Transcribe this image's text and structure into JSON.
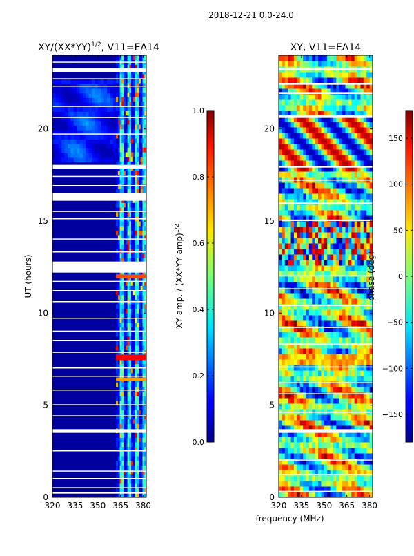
{
  "figure": {
    "suptitle": "2018-12-21 0.0-24.0",
    "shared_xlabel": "frequency (MHz)"
  },
  "chart_data": [
    {
      "type": "heatmap",
      "title": "XY/(XX*YY)^1/2, V11=EA14",
      "title_main": "XY/(XX*YY)",
      "title_exp": "1/2",
      "title_tail": ", V11=EA14",
      "xlabel": "frequency (MHz)",
      "ylabel": "UT (hours)",
      "xlim": [
        320,
        382
      ],
      "ylim": [
        0,
        24
      ],
      "xticks": [
        320,
        335,
        350,
        365,
        380
      ],
      "yticks": [
        0,
        5,
        10,
        15,
        20
      ],
      "flagged_hours": [
        [
          12.2,
          12.8
        ],
        [
          16.1,
          16.5
        ],
        [
          0.2,
          0.3
        ],
        [
          3.55,
          3.65
        ],
        [
          17.85,
          17.95
        ],
        [
          23.2,
          23.3
        ]
      ],
      "colorbar": {
        "label": "XY amp. / (XX*YY amp)^1/2",
        "label_main": "XY amp. / (XX*YY amp)",
        "label_exp": "1/2",
        "range": [
          0.0,
          1.0
        ],
        "ticks": [
          0.0,
          0.2,
          0.4,
          0.6,
          0.8,
          1.0
        ],
        "tick_labels": [
          "0.0",
          "0.2",
          "0.4",
          "0.6",
          "0.8",
          "1.0"
        ]
      }
    },
    {
      "type": "heatmap",
      "title": "XY, V11=EA14",
      "xlabel": "frequency (MHz)",
      "ylabel": "",
      "xlim": [
        320,
        382
      ],
      "ylim": [
        0,
        24
      ],
      "xticks": [
        320,
        335,
        350,
        365,
        380
      ],
      "yticks": [
        0,
        5,
        10,
        15,
        20
      ],
      "colorbar": {
        "label": "phase (deg)",
        "range": [
          -180,
          180
        ],
        "ticks": [
          -150,
          -100,
          -50,
          0,
          50,
          100,
          150
        ],
        "tick_labels": [
          "−150",
          "−100",
          "−50",
          "0",
          "50",
          "100",
          "150"
        ]
      }
    }
  ]
}
